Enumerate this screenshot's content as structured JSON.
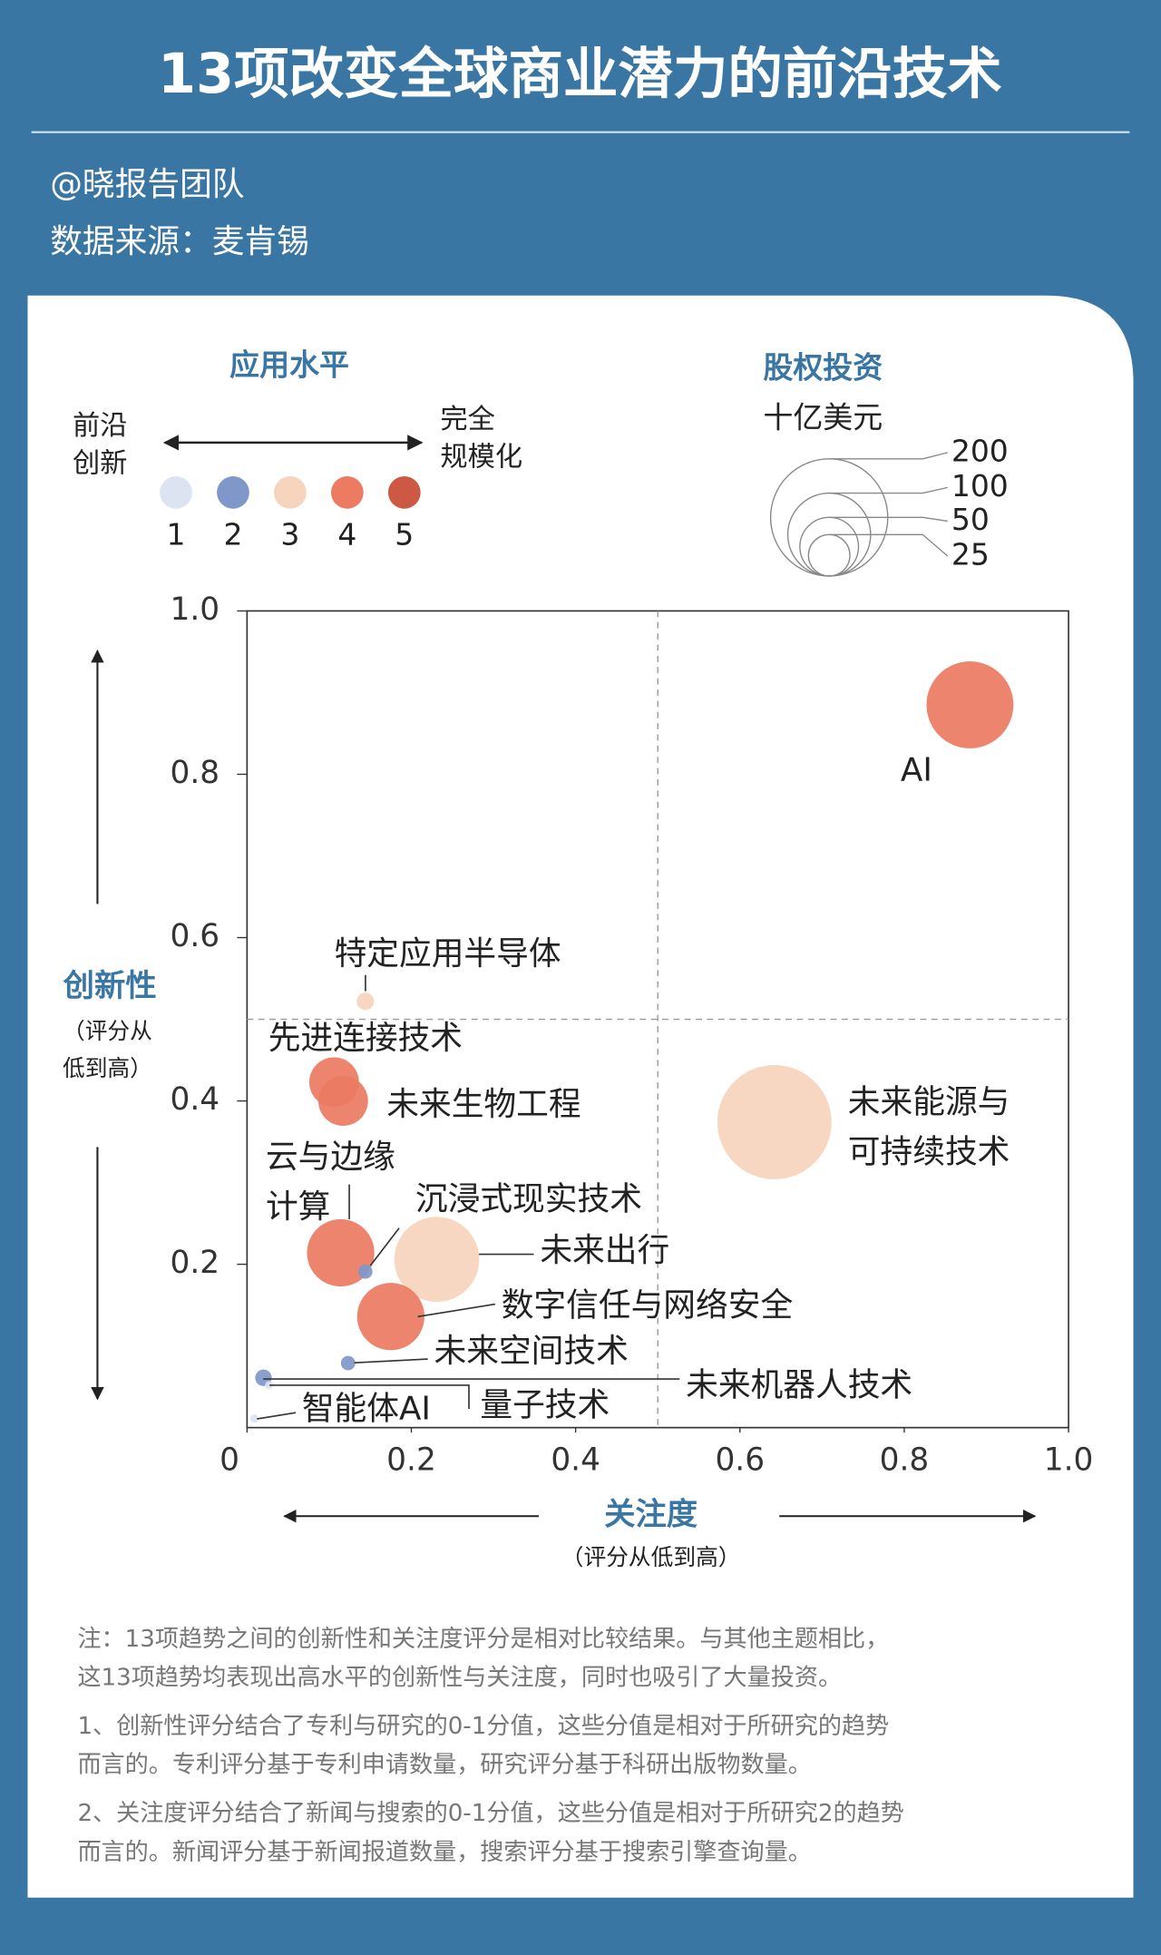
{
  "header": {
    "title": "13项改变全球商业潜力的前沿技术",
    "author": "@晓报告团队",
    "source": "数据来源：麦肯锡"
  },
  "chart_data": {
    "type": "bubble",
    "xlabel": "关注度",
    "xlabel_note": "（评分从低到高）",
    "ylabel": "创新性",
    "ylabel_note": "（评分从\n低到高）",
    "labels": [
      "AI",
      "未来能源与\n可持续技术",
      "特定应用半导体",
      "先进连接技术",
      "未来生物工程",
      "云与边缘\n计算",
      "沉浸式现实技术",
      "未来出行",
      "数字信任与网络安全",
      "未来空间技术",
      "未来机器人技术",
      "量子技术",
      "智能体AI"
    ],
    "x": [
      0.88,
      0.642,
      0.144,
      0.106,
      0.117,
      0.114,
      0.144,
      0.231,
      0.175,
      0.123,
      0.02,
      0.027,
      0.009
    ],
    "y": [
      0.885,
      0.374,
      0.522,
      0.423,
      0.4,
      0.214,
      0.191,
      0.206,
      0.136,
      0.079,
      0.061,
      0.052,
      0.011
    ],
    "sizes": [
      110,
      190,
      4.4,
      36,
      36,
      66,
      3,
      105,
      66,
      3,
      4,
      1,
      1
    ],
    "levels": [
      4,
      3,
      3,
      4,
      4,
      4,
      2,
      3,
      4,
      2,
      2,
      1,
      1
    ],
    "xlim": [
      0,
      1
    ],
    "ylim": [
      0,
      1
    ],
    "xticks": [
      0,
      0.2,
      0.4,
      0.6,
      0.8,
      {
        "value": 1,
        "label": "1.0"
      }
    ],
    "yticks": [
      0.2,
      0.4,
      0.6,
      0.8,
      {
        "value": 1,
        "label": "1.0"
      }
    ],
    "xdivider": 0.5,
    "ydivider": 0.5,
    "color_legend": {
      "title": "应用水平",
      "left": "前沿\n创新",
      "right": "完全\n规模化",
      "levels": [
        1,
        2,
        3,
        4,
        5
      ],
      "colors": [
        "#dce3f1",
        "#7f98c9",
        "#f6d4bd",
        "#ec7b62",
        "#cd5843"
      ]
    },
    "size_legend": {
      "title": "股权投资",
      "unit": "十亿美元",
      "values": [
        200,
        100,
        50,
        25
      ]
    }
  },
  "notes": [
    [
      "注：13项趋势之间的创新性和关注度评分是相对比较结果。与其他主题相比，",
      "这13项趋势均表现出高水平的创新性与关注度，同时也吸引了大量投资。"
    ],
    [
      "1、创新性评分结合了专利与研究的0-1分值，这些分值是相对于所研究的趋势",
      "而言的。专利评分基于专利申请数量，研究评分基于科研出版物数量。"
    ],
    [
      "2、关注度评分结合了新闻与搜索的0-1分值，这些分值是相对于所研究2的趋势",
      "而言的。新闻评分基于新闻报道数量，搜索评分基于搜索引擎查询量。"
    ]
  ]
}
